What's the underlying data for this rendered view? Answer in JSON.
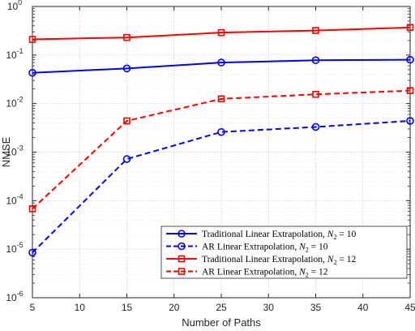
{
  "chart_data": {
    "type": "line",
    "xlabel": "Number of Paths",
    "ylabel": "NMSE",
    "x": [
      5,
      15,
      25,
      35,
      45
    ],
    "xlim": [
      5,
      45
    ],
    "xticks": [
      "5",
      "10",
      "15",
      "20",
      "25",
      "30",
      "35",
      "40",
      "45"
    ],
    "yscale": "log",
    "ylim": [
      1e-06,
      1
    ],
    "yticks": [
      {
        "base": "10",
        "exp": "-6"
      },
      {
        "base": "10",
        "exp": "-5"
      },
      {
        "base": "10",
        "exp": "-4"
      },
      {
        "base": "10",
        "exp": "-3"
      },
      {
        "base": "10",
        "exp": "-2"
      },
      {
        "base": "10",
        "exp": "-1"
      },
      {
        "base": "10",
        "exp": "0"
      }
    ],
    "grid": true,
    "legend_position": "bottom-right",
    "series": [
      {
        "name": "Traditional Linear Extrapolation, N_2 = 10",
        "legend_main": "Traditional Linear Extrapolation, ",
        "legend_sub": "2",
        "legend_tail": " = 10",
        "color": "#0000ff",
        "dash": "solid",
        "marker": "circle",
        "values": [
          0.043,
          0.053,
          0.07,
          0.078,
          0.08
        ]
      },
      {
        "name": "AR Linear Extrapolation, N_2 = 10",
        "legend_main": "AR Linear Extrapolation, ",
        "legend_sub": "2",
        "legend_tail": " = 10",
        "color": "#0000ff",
        "dash": "dashed",
        "marker": "circle",
        "values": [
          8.5e-06,
          0.00072,
          0.0026,
          0.0033,
          0.0044
        ]
      },
      {
        "name": "Traditional Linear Extrapolation, N_2 = 12",
        "legend_main": "Traditional Linear Extrapolation, ",
        "legend_sub": "2",
        "legend_tail": " = 12",
        "color": "#ff0000",
        "dash": "solid",
        "marker": "square",
        "values": [
          0.21,
          0.23,
          0.29,
          0.32,
          0.37
        ]
      },
      {
        "name": "AR Linear Extrapolation, N_2 = 12",
        "legend_main": "AR Linear Extrapolation, ",
        "legend_sub": "2",
        "legend_tail": " = 12",
        "color": "#ff0000",
        "dash": "dashed",
        "marker": "square",
        "values": [
          6.8e-05,
          0.0044,
          0.0125,
          0.0155,
          0.0185
        ]
      }
    ]
  }
}
